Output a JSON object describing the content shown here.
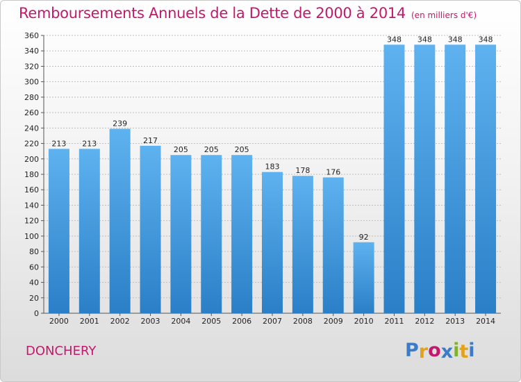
{
  "chart_data": {
    "type": "bar",
    "title": "Remboursements Annuels de la Dette de 2000 à 2014",
    "unit_label": "(en milliers d'€)",
    "categories": [
      "2000",
      "2001",
      "2002",
      "2003",
      "2004",
      "2005",
      "2006",
      "2007",
      "2008",
      "2009",
      "2010",
      "2011",
      "2012",
      "2013",
      "2014"
    ],
    "values": [
      213,
      213,
      239,
      217,
      205,
      205,
      205,
      183,
      178,
      176,
      92,
      348,
      348,
      348,
      348
    ],
    "ylim": [
      0,
      360
    ],
    "yticks": [
      0,
      20,
      40,
      60,
      80,
      100,
      120,
      140,
      160,
      180,
      200,
      220,
      240,
      260,
      280,
      300,
      320,
      340,
      360
    ],
    "xlabel": "",
    "ylabel": "",
    "grid": true,
    "bar_color": "#4da3e6"
  },
  "footer": {
    "commune": "DONCHERY",
    "logo_letters": [
      "P",
      "r",
      "o",
      "x",
      "i",
      "t",
      "i"
    ],
    "logo_colors": [
      "#3b7bc8",
      "#e2a21b",
      "#c1196b",
      "#3b7bc8",
      "#7fb22a",
      "#e2a21b",
      "#3b7bc8"
    ]
  },
  "colors": {
    "title": "#c1196b",
    "axis": "#555555",
    "grid": "#bfbfbf"
  }
}
